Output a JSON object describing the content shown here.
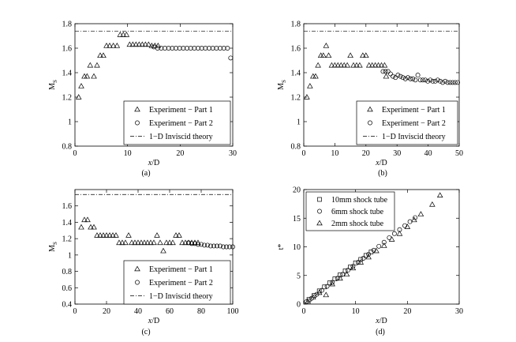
{
  "figure": {
    "panels": [
      "(a)",
      "(b)",
      "(c)",
      "(d)"
    ]
  },
  "chart_data": [
    {
      "type": "scatter",
      "panel_label": "(a)",
      "xlabel": "x/D",
      "ylabel": "M_S",
      "xlim": [
        0,
        30
      ],
      "ylim": [
        0.8,
        1.8
      ],
      "xticks": [
        0,
        10,
        20,
        30
      ],
      "yticks": [
        0.8,
        1,
        1.2,
        1.4,
        1.6,
        1.8
      ],
      "grid": false,
      "legend_position": "bottom-right",
      "series": [
        {
          "name": "Experiment − Part 1",
          "marker": "triangle",
          "x": [
            0.7,
            1.2,
            1.8,
            2.3,
            2.9,
            3.6,
            4.2,
            4.8,
            5.4,
            6.0,
            6.6,
            7.3,
            8.0,
            8.6,
            9.2,
            9.8,
            10.4,
            11.0,
            11.6,
            12.2,
            12.8,
            13.4,
            14.0,
            14.6,
            15.2,
            15.8
          ],
          "y": [
            1.2,
            1.29,
            1.37,
            1.37,
            1.46,
            1.37,
            1.46,
            1.54,
            1.54,
            1.62,
            1.62,
            1.62,
            1.62,
            1.71,
            1.71,
            1.71,
            1.63,
            1.63,
            1.63,
            1.63,
            1.63,
            1.63,
            1.63,
            1.62,
            1.62,
            1.62
          ]
        },
        {
          "name": "Experiment − Part 2",
          "marker": "circle",
          "x": [
            15.0,
            15.7,
            16.4,
            17.1,
            17.8,
            18.5,
            19.2,
            19.9,
            20.6,
            21.3,
            22.0,
            22.7,
            23.4,
            24.1,
            24.8,
            25.5,
            26.2,
            26.9,
            27.6,
            28.3,
            29.0,
            29.6
          ],
          "y": [
            1.61,
            1.6,
            1.6,
            1.6,
            1.6,
            1.6,
            1.6,
            1.6,
            1.6,
            1.6,
            1.6,
            1.6,
            1.6,
            1.6,
            1.6,
            1.6,
            1.6,
            1.6,
            1.6,
            1.6,
            1.6,
            1.52
          ]
        },
        {
          "name": "1−D Inviscid theory",
          "style": "dash-dot",
          "x": [
            0,
            30
          ],
          "y": [
            1.74,
            1.74
          ]
        }
      ]
    },
    {
      "type": "scatter",
      "panel_label": "(b)",
      "xlabel": "x/D",
      "ylabel": "M_S",
      "xlim": [
        0,
        50
      ],
      "ylim": [
        0.8,
        1.8
      ],
      "xticks": [
        0,
        10,
        20,
        30,
        40,
        50
      ],
      "yticks": [
        0.8,
        1,
        1.2,
        1.4,
        1.6,
        1.8
      ],
      "grid": false,
      "legend_position": "bottom-right",
      "series": [
        {
          "name": "Experiment − Part 1",
          "marker": "triangle",
          "x": [
            1.0,
            2.0,
            3.0,
            3.8,
            4.6,
            5.5,
            6.3,
            7.2,
            8.0,
            9.0,
            10.0,
            11.0,
            12.0,
            13.0,
            14.0,
            15.0,
            16.0,
            17.0,
            18.0,
            19.0,
            20.0,
            21.0,
            22.0,
            23.0,
            24.0,
            25.0,
            26.0,
            26.5
          ],
          "y": [
            1.2,
            1.29,
            1.37,
            1.37,
            1.46,
            1.54,
            1.54,
            1.62,
            1.54,
            1.46,
            1.46,
            1.46,
            1.46,
            1.46,
            1.46,
            1.54,
            1.46,
            1.46,
            1.46,
            1.54,
            1.54,
            1.46,
            1.46,
            1.46,
            1.46,
            1.46,
            1.46,
            1.37
          ]
        },
        {
          "name": "Experiment − Part 2",
          "marker": "circle",
          "x": [
            25.5,
            26.3,
            27.1,
            27.9,
            28.7,
            29.5,
            30.3,
            31.1,
            31.9,
            32.7,
            33.5,
            34.3,
            35.1,
            35.9,
            36.7,
            37.5,
            38.3,
            39.1,
            39.9,
            40.7,
            41.5,
            42.3,
            43.1,
            43.9,
            44.7,
            45.5,
            46.3,
            47.1,
            47.9,
            48.7,
            49.5
          ],
          "y": [
            1.41,
            1.41,
            1.41,
            1.39,
            1.37,
            1.36,
            1.38,
            1.37,
            1.36,
            1.35,
            1.36,
            1.35,
            1.35,
            1.34,
            1.38,
            1.34,
            1.34,
            1.34,
            1.33,
            1.34,
            1.33,
            1.33,
            1.34,
            1.33,
            1.32,
            1.33,
            1.32,
            1.32,
            1.32,
            1.32,
            1.32
          ]
        },
        {
          "name": "1−D Inviscid theory",
          "style": "dash-dot",
          "x": [
            0,
            50
          ],
          "y": [
            1.74,
            1.74
          ]
        }
      ]
    },
    {
      "type": "scatter",
      "panel_label": "(c)",
      "xlabel": "x/D",
      "ylabel": "M_S",
      "xlim": [
        0,
        100
      ],
      "ylim": [
        0.4,
        1.8
      ],
      "xticks": [
        0,
        20,
        40,
        60,
        80,
        100
      ],
      "yticks": [
        0.4,
        0.6,
        0.8,
        1,
        1.2,
        1.4,
        1.6
      ],
      "grid": false,
      "legend_position": "bottom-right",
      "series": [
        {
          "name": "Experiment − Part 1",
          "marker": "triangle",
          "x": [
            4,
            6,
            8,
            10,
            12,
            14,
            16,
            18,
            20,
            22,
            24,
            26,
            28,
            30,
            32,
            34,
            36,
            38,
            40,
            42,
            44,
            46,
            48,
            50,
            52,
            54,
            56,
            58,
            60,
            62,
            64,
            66,
            68,
            70,
            72,
            74,
            76,
            78
          ],
          "y": [
            1.34,
            1.43,
            1.43,
            1.34,
            1.34,
            1.24,
            1.24,
            1.24,
            1.24,
            1.24,
            1.24,
            1.24,
            1.15,
            1.15,
            1.15,
            1.24,
            1.15,
            1.15,
            1.15,
            1.15,
            1.15,
            1.15,
            1.15,
            1.15,
            1.24,
            1.15,
            1.05,
            1.15,
            1.15,
            1.15,
            1.24,
            1.24,
            1.15,
            1.15,
            1.15,
            1.15,
            1.15,
            1.15
          ]
        },
        {
          "name": "Experiment − Part 2",
          "marker": "circle",
          "x": [
            72,
            74,
            76,
            78,
            80,
            82,
            84,
            86,
            88,
            90,
            92,
            94,
            96,
            98,
            100
          ],
          "y": [
            1.15,
            1.14,
            1.14,
            1.13,
            1.13,
            1.12,
            1.12,
            1.11,
            1.11,
            1.11,
            1.11,
            1.1,
            1.1,
            1.1,
            1.1
          ]
        },
        {
          "name": "1−D Inviscid theory",
          "style": "dash-dot",
          "x": [
            0,
            100
          ],
          "y": [
            1.74,
            1.74
          ]
        }
      ]
    },
    {
      "type": "scatter",
      "panel_label": "(d)",
      "xlabel": "x/D",
      "ylabel": "t*",
      "xlim": [
        0,
        30
      ],
      "ylim": [
        0,
        20
      ],
      "xticks": [
        0,
        10,
        20,
        30
      ],
      "yticks": [
        0,
        5,
        10,
        15,
        20
      ],
      "grid": false,
      "legend_position": "top-left",
      "series": [
        {
          "name": "10mm shock tube",
          "marker": "square",
          "x": [
            1,
            2,
            3,
            4,
            5,
            6,
            7,
            8,
            9,
            10,
            11,
            12,
            13
          ],
          "y": [
            0.8,
            1.5,
            2.3,
            3.0,
            3.7,
            4.4,
            5.1,
            5.8,
            6.5,
            7.2,
            7.8,
            8.5,
            9.1
          ]
        },
        {
          "name": "6mm shock tube",
          "marker": "circle",
          "x": [
            0.5,
            1.5,
            2.5,
            3.5,
            4.5,
            5.5,
            6.5,
            7.5,
            8.5,
            9.5,
            10.5,
            11.5,
            12.5,
            13.5,
            14.5,
            15.5,
            16.5,
            17.5,
            18.5,
            19.5,
            20.5,
            21.5
          ],
          "y": [
            0.4,
            1.0,
            1.7,
            2.4,
            3.1,
            3.8,
            4.5,
            5.2,
            5.9,
            6.6,
            7.3,
            8.0,
            8.7,
            9.4,
            10.1,
            10.8,
            11.6,
            12.3,
            13.0,
            13.7,
            14.4,
            15.1
          ]
        },
        {
          "name": "2mm shock tube",
          "marker": "triangle",
          "x": [
            0.8,
            1.8,
            3.0,
            4.3,
            5.5,
            7.0,
            8.3,
            9.5,
            11.0,
            12.5,
            14.0,
            15.5,
            17.0,
            18.5,
            20.0,
            21.3,
            22.6,
            24.8,
            26.3
          ],
          "y": [
            0.5,
            1.2,
            2.0,
            1.6,
            3.5,
            4.5,
            5.2,
            6.3,
            7.3,
            8.2,
            9.3,
            10.2,
            11.3,
            12.3,
            13.5,
            14.7,
            15.7,
            17.4,
            19.0
          ]
        }
      ]
    }
  ]
}
